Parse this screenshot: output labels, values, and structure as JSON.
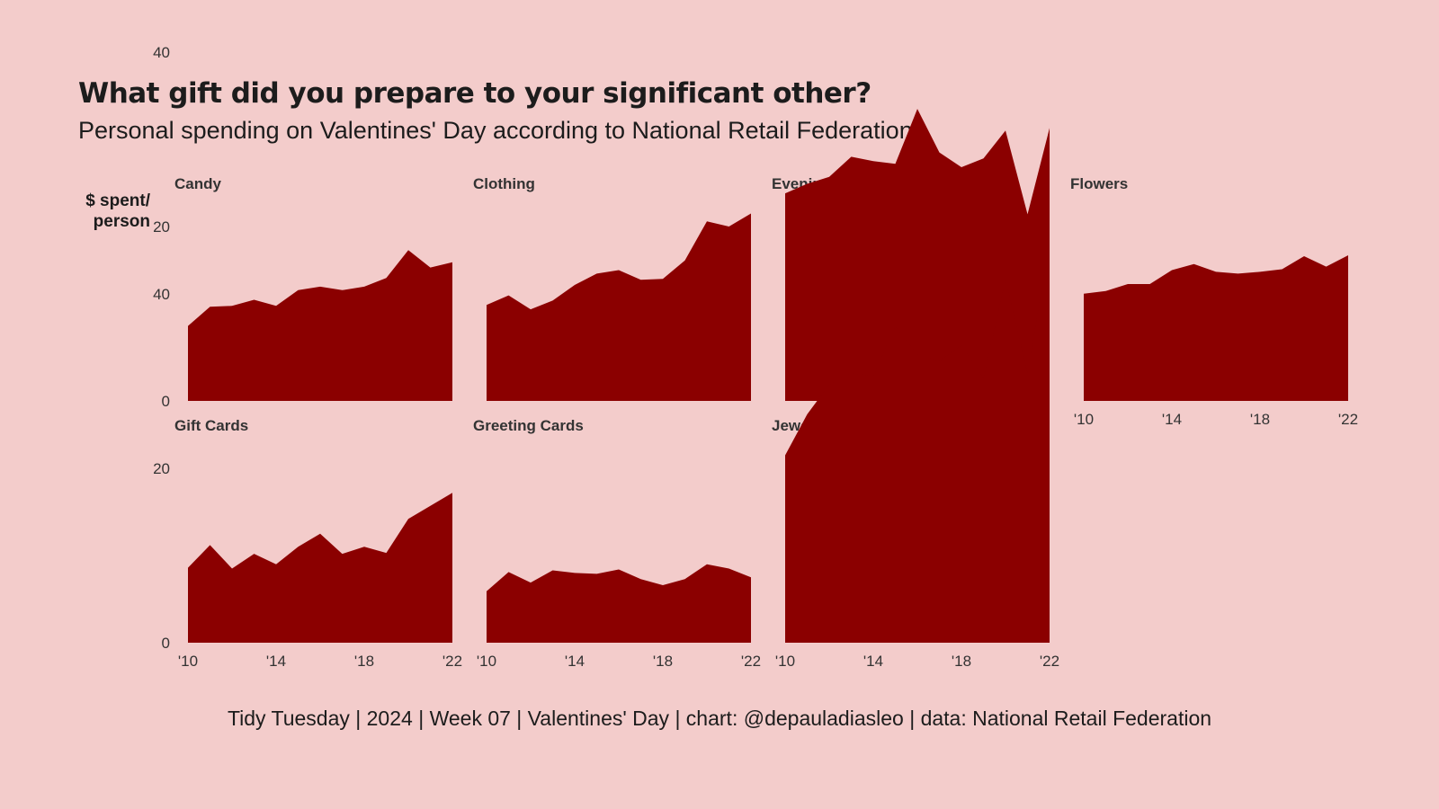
{
  "title": "What gift did you prepare to your significant other?",
  "subtitle": "Personal spending on Valentines' Day according to National Retail Federation",
  "caption": "Tidy Tuesday | 2024 | Week 07 | Valentines' Day | chart: @depauladiasleo | data: National Retail Federation",
  "colors": {
    "background": "#f3cccb",
    "area": "#8b0000",
    "text": "#1c1c1c"
  },
  "chart_data": {
    "type": "area",
    "ylabel_lines": [
      "$ spent/",
      "person"
    ],
    "ylim": [
      0,
      45
    ],
    "yticks": [
      0,
      20,
      40
    ],
    "xlim": [
      2010,
      2022
    ],
    "xticks": [
      2010,
      2014,
      2018,
      2022
    ],
    "xtick_labels": [
      "'10",
      "'14",
      "'18",
      "'22"
    ],
    "x": [
      2010,
      2011,
      2012,
      2013,
      2014,
      2015,
      2016,
      2017,
      2018,
      2019,
      2020,
      2021,
      2022
    ],
    "series": [
      {
        "name": "Candy",
        "values": [
          8.6,
          10.8,
          10.9,
          11.6,
          10.9,
          12.7,
          13.1,
          12.7,
          13.1,
          14.1,
          17.3,
          15.3,
          15.9
        ]
      },
      {
        "name": "Clothing",
        "values": [
          11.0,
          12.1,
          10.5,
          11.5,
          13.3,
          14.6,
          15.0,
          13.9,
          14.0,
          16.1,
          20.6,
          20.0,
          21.5
        ]
      },
      {
        "name": "Evening Out",
        "values": [
          23.8,
          24.9,
          25.7,
          28.0,
          27.5,
          27.2,
          33.5,
          28.5,
          26.8,
          27.8,
          31.0,
          21.4,
          31.3
        ]
      },
      {
        "name": "Flowers",
        "values": [
          12.3,
          12.6,
          13.4,
          13.4,
          15.0,
          15.7,
          14.8,
          14.6,
          14.8,
          15.1,
          16.6,
          15.4,
          16.7
        ]
      },
      {
        "name": "Gift Cards",
        "values": [
          8.6,
          11.2,
          8.5,
          10.2,
          9.0,
          11.0,
          12.5,
          10.2,
          11.0,
          10.3,
          14.2,
          15.7,
          17.2
        ]
      },
      {
        "name": "Greeting Cards",
        "values": [
          5.9,
          8.1,
          6.9,
          8.3,
          8.0,
          7.9,
          8.4,
          7.3,
          6.6,
          7.3,
          9.0,
          8.5,
          7.5
        ]
      },
      {
        "name": "Jewelry",
        "values": [
          21.5,
          26.2,
          29.6,
          30.9,
          30.6,
          36.3,
          33.1,
          32.3,
          34.1,
          30.3,
          41.7,
          30.9,
          45.8
        ]
      }
    ]
  }
}
